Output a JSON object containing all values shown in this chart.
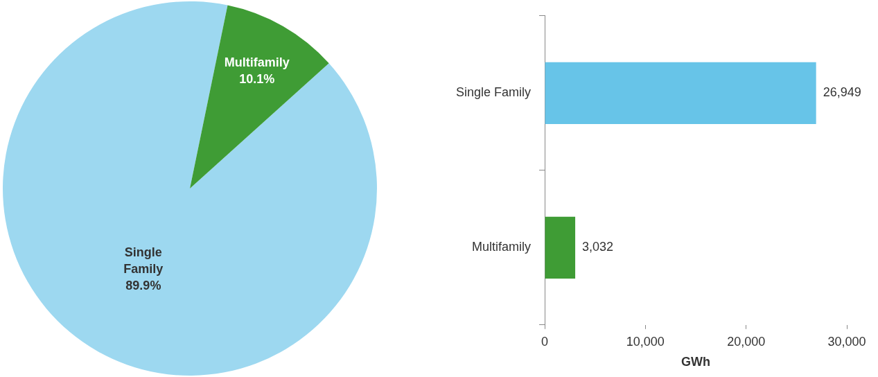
{
  "chart_data": [
    {
      "type": "pie",
      "categories": [
        "Single Family",
        "Multifamily"
      ],
      "values": [
        89.9,
        10.1
      ],
      "colors": [
        "#9dd8f0",
        "#3f9c35"
      ],
      "value_labels": [
        "89.9%",
        "10.1%"
      ]
    },
    {
      "type": "bar",
      "orientation": "horizontal",
      "categories": [
        "Single Family",
        "Multifamily"
      ],
      "values": [
        26949,
        3032
      ],
      "colors": [
        "#67c4e8",
        "#3f9c35"
      ],
      "value_labels": [
        "26,949",
        "3,032"
      ],
      "xlabel": "GWh",
      "xlim": [
        0,
        30000
      ],
      "xticks": [
        {
          "value": 0,
          "label": "0"
        },
        {
          "value": 10000,
          "label": "10,000"
        },
        {
          "value": 20000,
          "label": "20,000"
        },
        {
          "value": 30000,
          "label": "30,000"
        }
      ]
    }
  ]
}
